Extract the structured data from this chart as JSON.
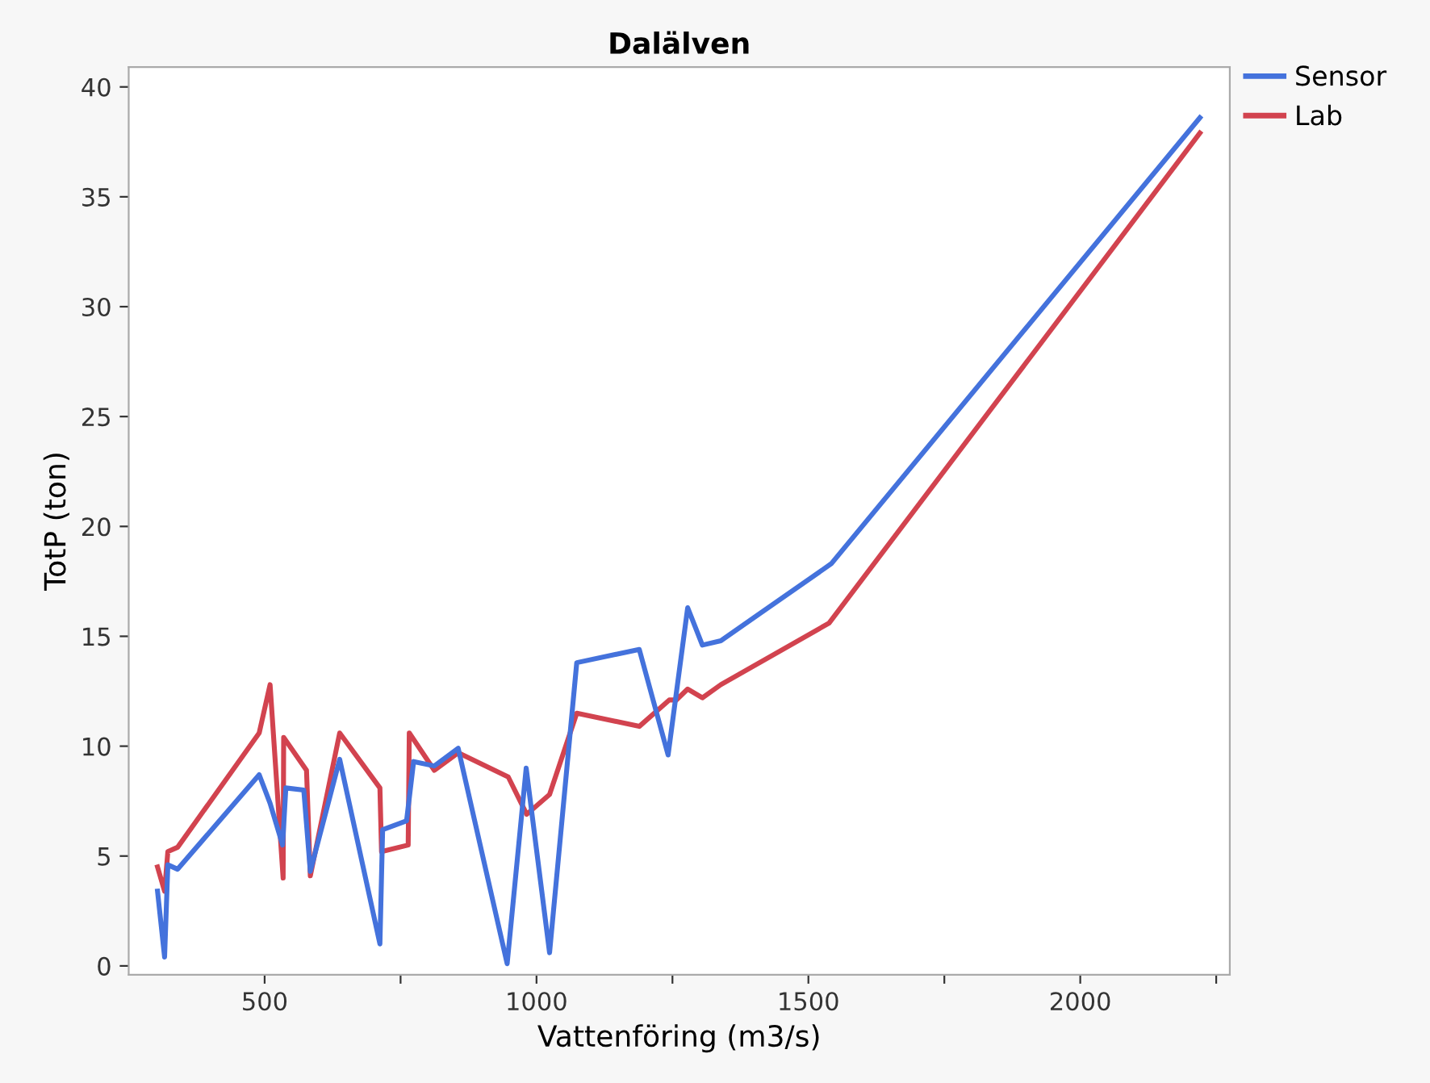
{
  "chart_data": {
    "type": "line",
    "title": "Dalälven",
    "xlabel": "Vattenföring (m3/s)",
    "ylabel": "TotP (ton)",
    "xlim": [
      250,
      2275
    ],
    "ylim": [
      -0.4,
      40.9
    ],
    "xticks": [
      500,
      {
        "value": 750,
        "label": null
      },
      1000,
      {
        "value": 1250,
        "label": null
      },
      1500,
      {
        "value": 1750,
        "label": null
      },
      2000,
      {
        "value": 2250,
        "label": null
      }
    ],
    "yticks": [
      0,
      5,
      10,
      15,
      20,
      25,
      30,
      35,
      40
    ],
    "grid": false,
    "legend": "right",
    "marker": "none",
    "line_style": "solid",
    "series": [
      {
        "name": "Sensor",
        "color": "#4472dc",
        "x": [
          303,
          316,
          322,
          340,
          490,
          510,
          533,
          539,
          572,
          584,
          638,
          712,
          717,
          761,
          774,
          812,
          856,
          946,
          981,
          1024,
          1074,
          1189,
          1242,
          1278,
          1305,
          1339,
          1542,
          2220
        ],
        "values": [
          3.4,
          0.4,
          4.6,
          4.4,
          8.7,
          7.4,
          5.5,
          8.1,
          8.0,
          4.3,
          9.4,
          1.0,
          6.2,
          6.6,
          9.3,
          9.1,
          9.9,
          0.1,
          9.0,
          0.6,
          13.8,
          14.4,
          9.6,
          16.3,
          14.6,
          14.8,
          18.3,
          38.6
        ]
      },
      {
        "name": "Lab",
        "color": "#d2434f",
        "x": [
          303,
          316,
          322,
          340,
          490,
          510,
          534,
          535,
          577,
          584,
          638,
          712,
          715,
          764,
          766,
          812,
          856,
          948,
          982,
          1024,
          1074,
          1189,
          1244,
          1257,
          1278,
          1305,
          1339,
          1538,
          2220
        ],
        "values": [
          4.5,
          3.4,
          5.2,
          5.4,
          10.6,
          12.8,
          4.0,
          10.4,
          8.9,
          4.1,
          10.6,
          8.1,
          5.2,
          5.5,
          10.6,
          8.9,
          9.7,
          8.6,
          6.9,
          7.8,
          11.5,
          10.9,
          12.1,
          12.1,
          12.6,
          12.2,
          12.8,
          15.6,
          37.9
        ]
      }
    ]
  }
}
